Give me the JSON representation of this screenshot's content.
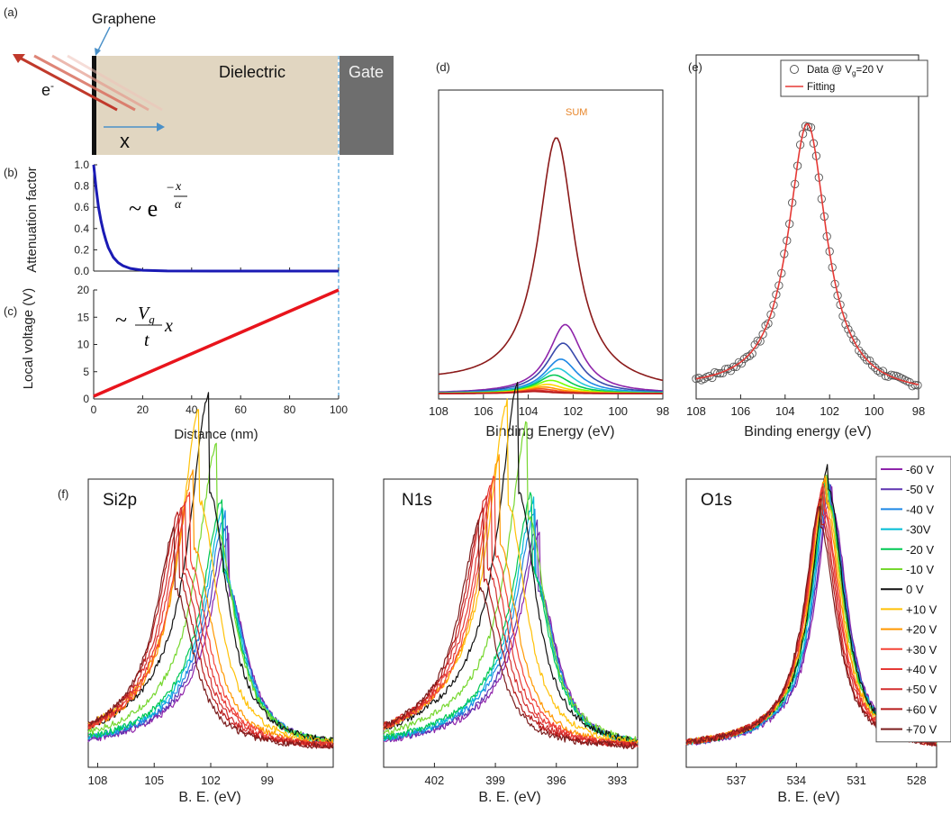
{
  "panel_labels": {
    "a": "(a)",
    "b": "(b)",
    "c": "(c)",
    "d": "(d)",
    "e": "(e)",
    "f": "(f)"
  },
  "schematic": {
    "graphene": "Graphene",
    "dielectric": "Dielectric",
    "gate": "Gate",
    "electron": "e",
    "electron_sup": "-",
    "x_axis": "x",
    "colors": {
      "dielectric": "#e1d6c1",
      "gate": "#6e6e6e",
      "arrow": "#4a90c8",
      "beam": "#c0392b"
    }
  },
  "chart_data": [
    {
      "id": "b",
      "type": "line",
      "ylabel": "Attenuation factor",
      "ylim": [
        0,
        1.0
      ],
      "yticks": [
        "0.0",
        "0.2",
        "0.4",
        "0.6",
        "0.8",
        "1.0"
      ],
      "xlim": [
        0,
        100
      ],
      "formula": "~e^(-x/α)",
      "series": [
        {
          "color": "#1a1ab4",
          "x": [
            0,
            1,
            2,
            3,
            4,
            5,
            6,
            8,
            10,
            12,
            15,
            20,
            30,
            50,
            100
          ],
          "y": [
            1.0,
            0.78,
            0.6,
            0.47,
            0.37,
            0.29,
            0.22,
            0.13,
            0.08,
            0.05,
            0.025,
            0.008,
            0.001,
            0,
            0
          ]
        }
      ]
    },
    {
      "id": "c",
      "type": "line",
      "ylabel": "Local voltage (V)",
      "xlabel": "Distance (nm)",
      "xlim": [
        0,
        100
      ],
      "ylim": [
        0,
        20
      ],
      "xticks": [
        "0",
        "20",
        "40",
        "60",
        "80",
        "100"
      ],
      "yticks": [
        "0",
        "5",
        "10",
        "15",
        "20"
      ],
      "formula": "~(Vg/t)x",
      "series": [
        {
          "color": "#e8141c",
          "x": [
            0,
            100
          ],
          "y": [
            0.5,
            20
          ]
        }
      ]
    },
    {
      "id": "d",
      "type": "line",
      "xlabel": "Binding Energy (eV)",
      "xlim": [
        108,
        98
      ],
      "xticks": [
        "108",
        "106",
        "104",
        "102",
        "100",
        "98"
      ],
      "sum_label": "SUM",
      "sum_label_color": "#e8862a",
      "sum": {
        "center": 102.75,
        "amp": 1.0,
        "w": 1.0,
        "base": 0.1,
        "color": "#8b1a1a"
      },
      "components": [
        {
          "center": 102.35,
          "amp": 0.26,
          "color": "#8e24aa"
        },
        {
          "center": 102.45,
          "amp": 0.19,
          "color": "#3949ab"
        },
        {
          "center": 102.55,
          "amp": 0.13,
          "color": "#1e88e5"
        },
        {
          "center": 102.7,
          "amp": 0.095,
          "color": "#26c6da"
        },
        {
          "center": 102.85,
          "amp": 0.07,
          "color": "#00c853"
        },
        {
          "center": 103.0,
          "amp": 0.05,
          "color": "#76ff03"
        },
        {
          "center": 103.15,
          "amp": 0.035,
          "color": "#ffd600"
        },
        {
          "center": 103.3,
          "amp": 0.025,
          "color": "#ff9800"
        },
        {
          "center": 103.45,
          "amp": 0.018,
          "color": "#f4511e"
        },
        {
          "center": 103.6,
          "amp": 0.012,
          "color": "#d32f2f"
        },
        {
          "center": 103.75,
          "amp": 0.008,
          "color": "#b71c1c"
        }
      ]
    },
    {
      "id": "e",
      "type": "scatter",
      "xlabel": "Binding energy (eV)",
      "xlim": [
        108,
        98
      ],
      "xticks": [
        "108",
        "106",
        "104",
        "102",
        "100",
        "98"
      ],
      "legend": [
        {
          "label": "Data @ V",
          "sub": "g",
          "suffix": "=20 V",
          "marker": "circle",
          "color": "#555555"
        },
        {
          "label": "Fitting",
          "marker": "line",
          "color": "#e53935"
        }
      ],
      "fit": {
        "center": 103.0,
        "w": 1.05,
        "amp": 0.92,
        "base": 0.05
      }
    },
    {
      "id": "f-si2p",
      "type": "line",
      "title": "Si2p",
      "xlabel": "B. E. (eV)",
      "xlim": [
        108.5,
        95.5
      ],
      "xticks": [
        "108",
        "105",
        "102",
        "99"
      ],
      "tick_values": [
        108,
        105,
        102,
        99
      ]
    },
    {
      "id": "f-n1s",
      "type": "line",
      "title": "N1s",
      "xlabel": "B. E. (eV)",
      "xlim": [
        404.5,
        392
      ],
      "xticks": [
        "402",
        "399",
        "396",
        "393"
      ],
      "tick_values": [
        402,
        399,
        396,
        393
      ]
    },
    {
      "id": "f-o1s",
      "type": "line",
      "title": "O1s",
      "xlabel": "B. E. (eV)",
      "xlim": [
        539.5,
        527
      ],
      "xticks": [
        "537",
        "534",
        "531",
        "528"
      ],
      "tick_values": [
        537,
        534,
        531,
        528
      ]
    }
  ],
  "voltage_series": [
    {
      "name": "-60 V",
      "color": "#8e24aa",
      "si": 101.0,
      "n": 396.8,
      "o": 532.2
    },
    {
      "name": "-50 V",
      "color": "#5e35b1",
      "si": 101.1,
      "n": 396.9,
      "o": 532.25
    },
    {
      "name": "-40 V",
      "color": "#1e88e5",
      "si": 101.2,
      "n": 397.0,
      "o": 532.3
    },
    {
      "name": "-30V",
      "color": "#00bcd4",
      "si": 101.3,
      "n": 397.1,
      "o": 532.35
    },
    {
      "name": "-20 V",
      "color": "#00c853",
      "si": 101.4,
      "n": 397.2,
      "o": 532.4
    },
    {
      "name": "-10 V",
      "color": "#76d72f",
      "si": 101.7,
      "n": 397.4,
      "o": 532.45
    },
    {
      "name": "0 V",
      "color": "#111111",
      "si": 102.1,
      "n": 397.9,
      "o": 532.4
    },
    {
      "name": "+10 V",
      "color": "#ffc107",
      "si": 102.6,
      "n": 398.4,
      "o": 532.5
    },
    {
      "name": "+20 V",
      "color": "#ff9800",
      "si": 102.9,
      "n": 398.8,
      "o": 532.55
    },
    {
      "name": "+30 V",
      "color": "#f44336",
      "si": 103.1,
      "n": 399.0,
      "o": 532.6
    },
    {
      "name": "+40 V",
      "color": "#e53935",
      "si": 103.3,
      "n": 399.2,
      "o": 532.65
    },
    {
      "name": "+50 V",
      "color": "#d32f2f",
      "si": 103.5,
      "n": 399.4,
      "o": 532.7
    },
    {
      "name": "+60 V",
      "color": "#b71c1c",
      "si": 103.7,
      "n": 399.6,
      "o": 532.75
    },
    {
      "name": "+70 V",
      "color": "#7b1e1e",
      "si": 103.9,
      "n": 399.8,
      "o": 532.8
    }
  ]
}
